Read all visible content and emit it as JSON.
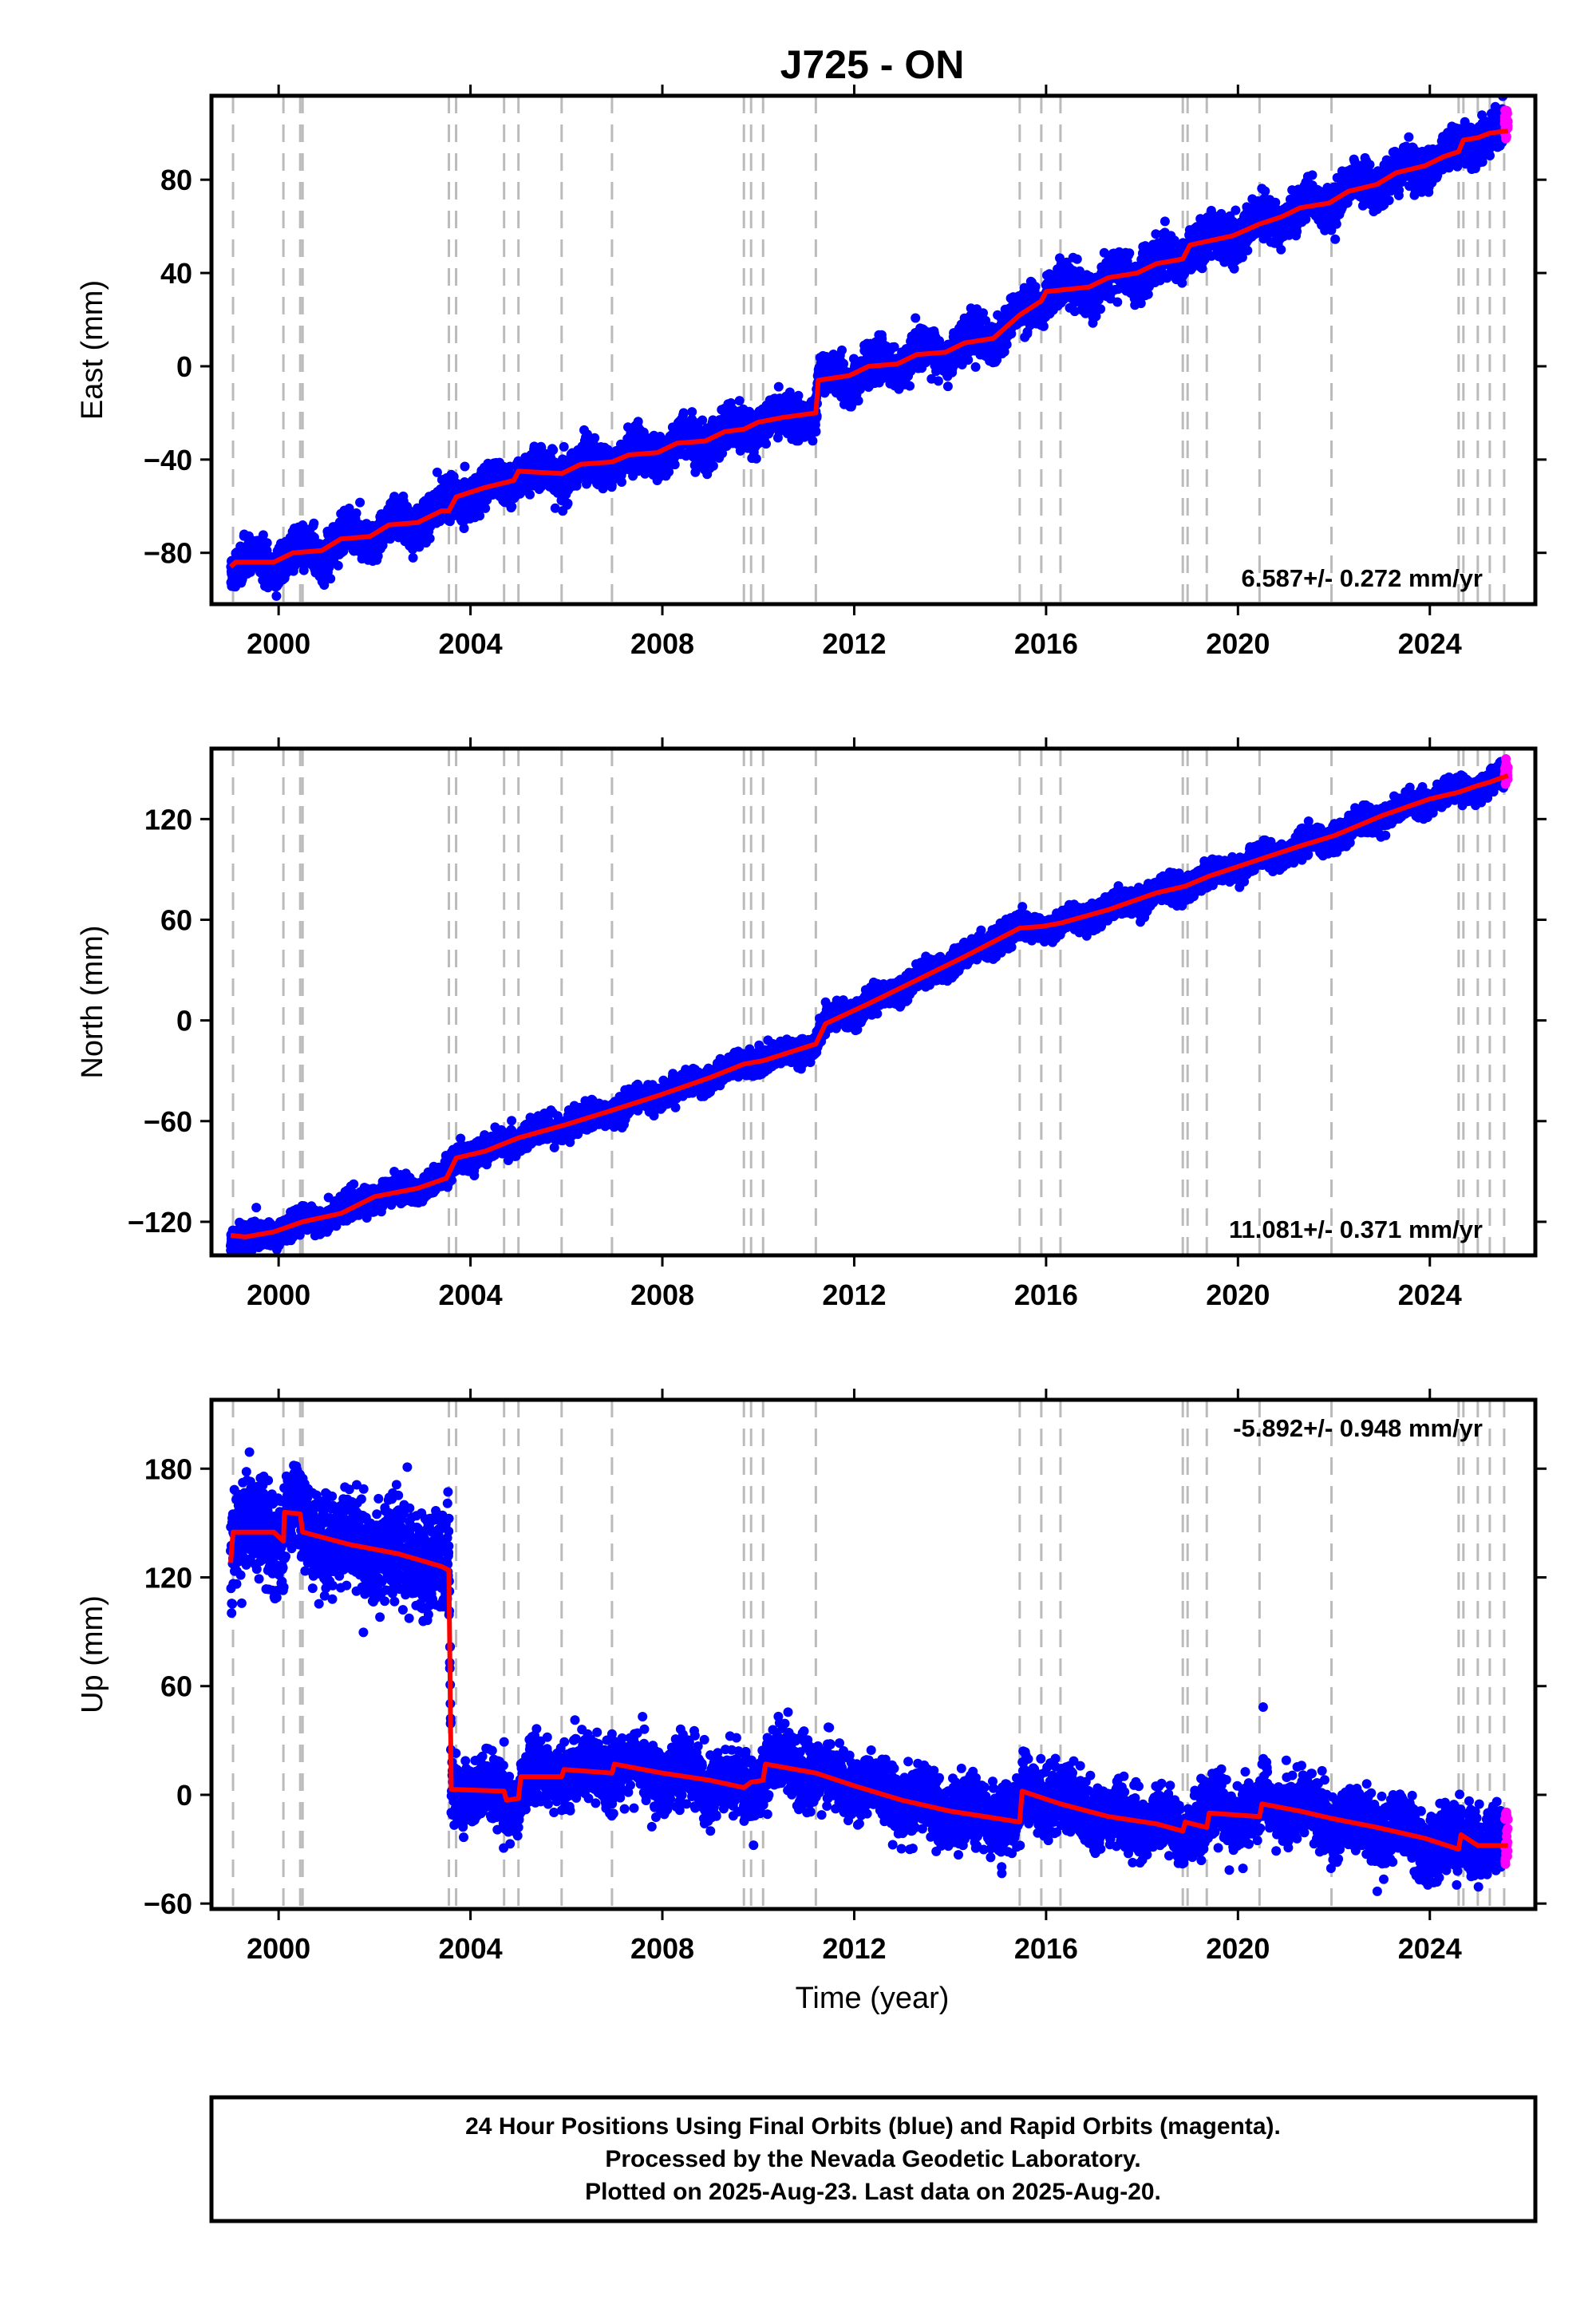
{
  "title": "J725 - ON",
  "xlabel": "Time (year)",
  "footer": [
    "24 Hour Positions Using Final Orbits (blue) and Rapid Orbits (magenta).",
    "Processed by the Nevada Geodetic Laboratory.",
    "Plotted on 2025-Aug-23. Last data on 2025-Aug-20."
  ],
  "colors": {
    "final_orbits": "#0000ff",
    "rapid_orbits": "#ff00ff",
    "model": "#ff0000",
    "event_lines": "#bbbbbb"
  },
  "chart_data": {
    "type": "scatter",
    "xlim": [
      1998.6,
      2026.2
    ],
    "x_ticks": [
      2000,
      2004,
      2008,
      2012,
      2016,
      2020,
      2024
    ],
    "event_years": [
      1999.05,
      2000.1,
      2000.45,
      2000.5,
      2003.55,
      2003.7,
      2004.7,
      2005.0,
      2005.9,
      2006.95,
      2009.7,
      2009.85,
      2010.1,
      2011.2,
      2015.45,
      2015.9,
      2016.3,
      2018.85,
      2018.95,
      2019.35,
      2020.45,
      2021.95,
      2024.6,
      2024.7,
      2025.0,
      2025.25,
      2025.55
    ],
    "data_start": 1999.0,
    "last_data": 2025.63,
    "rapid_start": 2025.5,
    "panels": [
      {
        "ylabel": "East (mm)",
        "ylim": [
          -102,
          116
        ],
        "y_ticks": [
          -80,
          -40,
          0,
          40,
          80
        ],
        "rate": "6.587+/- 0.272 mm/yr",
        "rate_position": "bottom-right",
        "model": [
          [
            1999.0,
            -86
          ],
          [
            1999.1,
            -84
          ],
          [
            1999.9,
            -84
          ],
          [
            2000.3,
            -80
          ],
          [
            2000.9,
            -79
          ],
          [
            2001.3,
            -74
          ],
          [
            2001.9,
            -73
          ],
          [
            2002.3,
            -68
          ],
          [
            2002.9,
            -67
          ],
          [
            2003.4,
            -62
          ],
          [
            2003.55,
            -62
          ],
          [
            2003.7,
            -56
          ],
          [
            2004.3,
            -52
          ],
          [
            2004.9,
            -49
          ],
          [
            2005.0,
            -45
          ],
          [
            2005.9,
            -46
          ],
          [
            2006.3,
            -42
          ],
          [
            2006.95,
            -41
          ],
          [
            2007.3,
            -38
          ],
          [
            2007.9,
            -37
          ],
          [
            2008.3,
            -33
          ],
          [
            2008.9,
            -32
          ],
          [
            2009.3,
            -28
          ],
          [
            2009.7,
            -27
          ],
          [
            2010.0,
            -24
          ],
          [
            2010.5,
            -22
          ],
          [
            2011.2,
            -20
          ],
          [
            2011.25,
            -6
          ],
          [
            2011.9,
            -4
          ],
          [
            2012.3,
            0
          ],
          [
            2012.9,
            1
          ],
          [
            2013.3,
            5
          ],
          [
            2013.9,
            6
          ],
          [
            2014.3,
            10
          ],
          [
            2014.9,
            12
          ],
          [
            2015.45,
            22
          ],
          [
            2015.9,
            28
          ],
          [
            2016.0,
            32
          ],
          [
            2016.9,
            34
          ],
          [
            2017.3,
            38
          ],
          [
            2017.9,
            40
          ],
          [
            2018.3,
            44
          ],
          [
            2018.85,
            46
          ],
          [
            2019.0,
            52
          ],
          [
            2019.9,
            56
          ],
          [
            2020.45,
            61
          ],
          [
            2020.9,
            64
          ],
          [
            2021.3,
            68
          ],
          [
            2021.9,
            70
          ],
          [
            2022.3,
            75
          ],
          [
            2022.9,
            78
          ],
          [
            2023.3,
            83
          ],
          [
            2023.9,
            86
          ],
          [
            2024.3,
            90
          ],
          [
            2024.6,
            92
          ],
          [
            2024.7,
            97
          ],
          [
            2025.0,
            98
          ],
          [
            2025.25,
            100
          ],
          [
            2025.63,
            101
          ]
        ],
        "scatter": {
          "noise": 4.0,
          "seasonal": 3.5,
          "outlier_spread": 9
        }
      },
      {
        "ylabel": "North (mm)",
        "ylim": [
          -140,
          162
        ],
        "y_ticks": [
          -120,
          -60,
          0,
          60,
          120
        ],
        "rate": "11.081+/- 0.371 mm/yr",
        "rate_position": "bottom-right",
        "model": [
          [
            1999.0,
            -128
          ],
          [
            1999.3,
            -129
          ],
          [
            1999.9,
            -126
          ],
          [
            2000.5,
            -120
          ],
          [
            2001.3,
            -115
          ],
          [
            2002.0,
            -105
          ],
          [
            2002.9,
            -100
          ],
          [
            2003.5,
            -94
          ],
          [
            2003.7,
            -82
          ],
          [
            2004.3,
            -78
          ],
          [
            2005.0,
            -70
          ],
          [
            2006.0,
            -62
          ],
          [
            2006.9,
            -54
          ],
          [
            2008.0,
            -44
          ],
          [
            2009.0,
            -34
          ],
          [
            2009.7,
            -26
          ],
          [
            2010.1,
            -24
          ],
          [
            2011.2,
            -14
          ],
          [
            2011.4,
            -2
          ],
          [
            2012.3,
            10
          ],
          [
            2013.3,
            24
          ],
          [
            2014.3,
            38
          ],
          [
            2015.45,
            55
          ],
          [
            2015.9,
            56
          ],
          [
            2016.3,
            58
          ],
          [
            2017.3,
            66
          ],
          [
            2018.3,
            76
          ],
          [
            2018.9,
            80
          ],
          [
            2019.4,
            86
          ],
          [
            2020.45,
            96
          ],
          [
            2021.3,
            104
          ],
          [
            2022.0,
            110
          ],
          [
            2023.0,
            122
          ],
          [
            2024.0,
            132
          ],
          [
            2024.6,
            136
          ],
          [
            2025.0,
            140
          ],
          [
            2025.25,
            142
          ],
          [
            2025.63,
            146
          ]
        ],
        "scatter": {
          "noise": 3.5,
          "seasonal": 2.5,
          "outlier_spread": 8
        }
      },
      {
        "ylabel": "Up (mm)",
        "ylim": [
          -63,
          218
        ],
        "y_ticks": [
          -60,
          0,
          60,
          120,
          180
        ],
        "rate": "-5.892+/- 0.948 mm/yr",
        "rate_position": "top-right",
        "model": [
          [
            1999.0,
            128
          ],
          [
            1999.05,
            145
          ],
          [
            1999.9,
            145
          ],
          [
            2000.1,
            140
          ],
          [
            2000.12,
            156
          ],
          [
            2000.45,
            155
          ],
          [
            2000.5,
            145
          ],
          [
            2001.5,
            138
          ],
          [
            2002.5,
            133
          ],
          [
            2003.4,
            126
          ],
          [
            2003.55,
            124
          ],
          [
            2003.6,
            3
          ],
          [
            2004.7,
            2
          ],
          [
            2004.75,
            -3
          ],
          [
            2005.0,
            -2
          ],
          [
            2005.05,
            10
          ],
          [
            2005.9,
            10
          ],
          [
            2005.95,
            14
          ],
          [
            2006.95,
            12
          ],
          [
            2007.0,
            17
          ],
          [
            2008.0,
            12
          ],
          [
            2009.0,
            8
          ],
          [
            2009.7,
            4
          ],
          [
            2009.85,
            7
          ],
          [
            2010.1,
            8
          ],
          [
            2010.15,
            17
          ],
          [
            2011.2,
            12
          ],
          [
            2012.0,
            5
          ],
          [
            2013.0,
            -3
          ],
          [
            2014.0,
            -9
          ],
          [
            2015.45,
            -15
          ],
          [
            2015.5,
            2
          ],
          [
            2016.3,
            -5
          ],
          [
            2017.3,
            -12
          ],
          [
            2018.3,
            -16
          ],
          [
            2018.85,
            -20
          ],
          [
            2018.9,
            -15
          ],
          [
            2019.35,
            -18
          ],
          [
            2019.4,
            -10
          ],
          [
            2020.45,
            -12
          ],
          [
            2020.5,
            -5
          ],
          [
            2021.3,
            -9
          ],
          [
            2021.95,
            -13
          ],
          [
            2022.9,
            -18
          ],
          [
            2023.9,
            -24
          ],
          [
            2024.6,
            -30
          ],
          [
            2024.65,
            -22
          ],
          [
            2025.0,
            -28
          ],
          [
            2025.63,
            -28
          ]
        ],
        "scatter": {
          "noise": 8.0,
          "seasonal": 5.0,
          "outlier_spread": 22
        }
      }
    ]
  }
}
